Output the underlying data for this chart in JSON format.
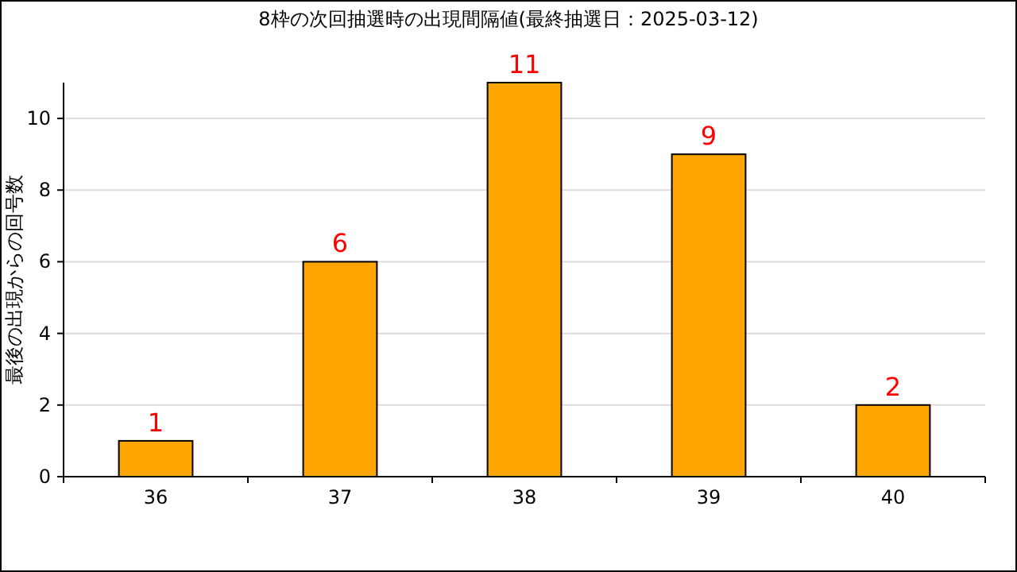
{
  "chart_data": {
    "type": "bar",
    "title": "8枠の次回抽選時の出現間隔値(最終抽選日：2025-03-12)",
    "ylabel": "最後の出現からの回号数",
    "categories": [
      "36",
      "37",
      "38",
      "39",
      "40"
    ],
    "values": [
      1,
      6,
      11,
      9,
      2
    ],
    "color": "#ffa500",
    "ylim": [
      0,
      11
    ],
    "yticks": [
      0,
      2,
      4,
      6,
      8,
      10
    ],
    "grid": "y",
    "data_labels": true
  }
}
